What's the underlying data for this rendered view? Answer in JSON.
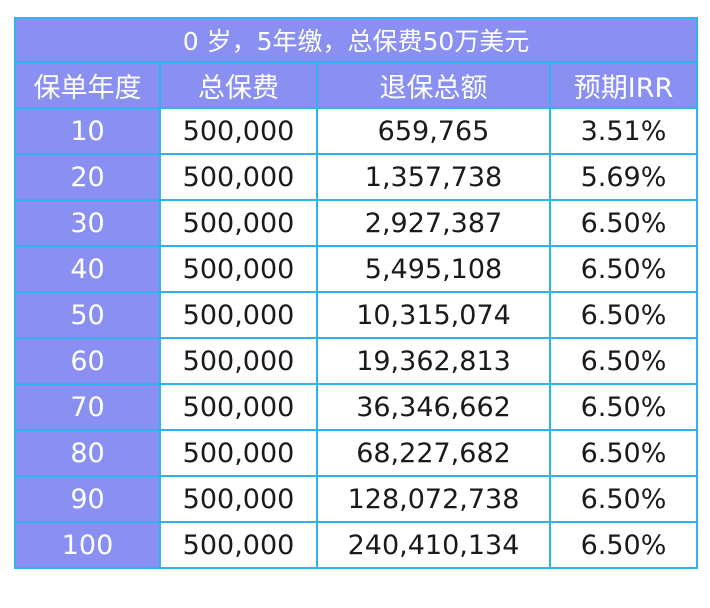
{
  "title": "0 岁，5年缴，总保费50万美元",
  "columns": [
    "保单年度",
    "总保费",
    "退保总额",
    "预期IRR"
  ],
  "rows": [
    {
      "year": "10",
      "premium": "500,000",
      "surrender": "659,765",
      "irr": "3.51%"
    },
    {
      "year": "20",
      "premium": "500,000",
      "surrender": "1,357,738",
      "irr": "5.69%"
    },
    {
      "year": "30",
      "premium": "500,000",
      "surrender": "2,927,387",
      "irr": "6.50%"
    },
    {
      "year": "40",
      "premium": "500,000",
      "surrender": "5,495,108",
      "irr": "6.50%"
    },
    {
      "year": "50",
      "premium": "500,000",
      "surrender": "10,315,074",
      "irr": "6.50%"
    },
    {
      "year": "60",
      "premium": "500,000",
      "surrender": "19,362,813",
      "irr": "6.50%"
    },
    {
      "year": "70",
      "premium": "500,000",
      "surrender": "36,346,662",
      "irr": "6.50%"
    },
    {
      "year": "80",
      "premium": "500,000",
      "surrender": "68,227,682",
      "irr": "6.50%"
    },
    {
      "year": "90",
      "premium": "500,000",
      "surrender": "128,072,738",
      "irr": "6.50%"
    },
    {
      "year": "100",
      "premium": "500,000",
      "surrender": "240,410,134",
      "irr": "6.50%"
    }
  ],
  "colors": {
    "header_bg": "#8a8ff2",
    "border": "#2eb4e8",
    "header_text": "#ffffff",
    "body_text": "#1a1a1a"
  }
}
